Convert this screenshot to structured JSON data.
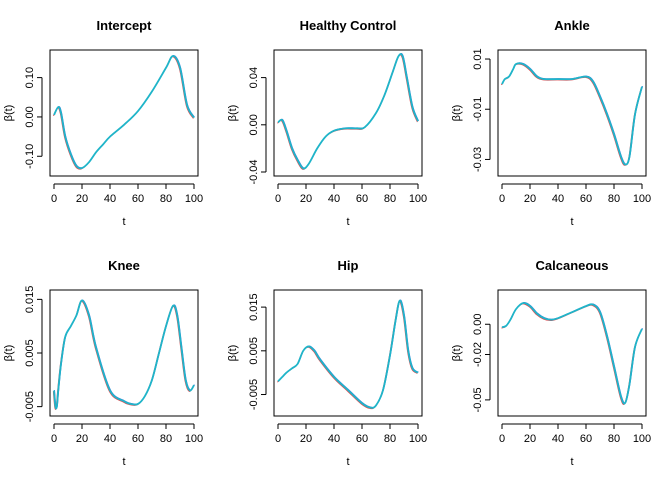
{
  "colors": {
    "axis": "#000000",
    "line_main": "#1fb5c9",
    "line_alt": "#e8474a"
  },
  "chart_data": [
    {
      "type": "line",
      "title": "Intercept",
      "xlabel": "t",
      "ylabel": "β(t)",
      "xlim": [
        0,
        100
      ],
      "ylim": [
        -0.14,
        0.16
      ],
      "xticks": [
        0,
        20,
        40,
        60,
        80,
        100
      ],
      "yticks": [
        -0.1,
        0.0,
        0.1
      ],
      "ytick_labels": [
        "-0.10",
        "0.00",
        "0.10"
      ],
      "x": [
        0,
        3,
        5,
        8,
        12,
        16,
        20,
        25,
        30,
        35,
        40,
        50,
        60,
        70,
        80,
        85,
        90,
        95,
        100
      ],
      "series": [
        {
          "values": [
            0.005,
            0.025,
            0.01,
            -0.05,
            -0.095,
            -0.125,
            -0.13,
            -0.115,
            -0.09,
            -0.07,
            -0.05,
            -0.02,
            0.015,
            0.065,
            0.125,
            0.155,
            0.125,
            0.03,
            -0.002
          ]
        }
      ]
    },
    {
      "type": "line",
      "title": "Healthy Control",
      "xlabel": "t",
      "ylabel": "β(t)",
      "xlim": [
        0,
        100
      ],
      "ylim": [
        -0.04,
        0.06
      ],
      "xticks": [
        0,
        20,
        40,
        60,
        80,
        100
      ],
      "yticks": [
        -0.04,
        0.0,
        0.04
      ],
      "ytick_labels": [
        "-0.04",
        "0.00",
        "0.04"
      ],
      "x": [
        0,
        3,
        6,
        10,
        14,
        18,
        22,
        28,
        34,
        40,
        48,
        56,
        62,
        70,
        76,
        82,
        86,
        89,
        92,
        96,
        100
      ],
      "series": [
        {
          "values": [
            0.002,
            0.004,
            -0.005,
            -0.02,
            -0.03,
            -0.037,
            -0.033,
            -0.02,
            -0.01,
            -0.005,
            -0.003,
            -0.003,
            -0.002,
            0.01,
            0.025,
            0.045,
            0.058,
            0.058,
            0.04,
            0.015,
            0.003
          ]
        }
      ]
    },
    {
      "type": "line",
      "title": "Ankle",
      "xlabel": "t",
      "ylabel": "β(t)",
      "xlim": [
        0,
        100
      ],
      "ylim": [
        -0.035,
        0.012
      ],
      "xticks": [
        0,
        20,
        40,
        60,
        80,
        100
      ],
      "yticks": [
        -0.03,
        -0.01,
        0.01
      ],
      "ytick_labels": [
        "-0.03",
        "-0.01",
        "0.01"
      ],
      "x": [
        0,
        2,
        5,
        8,
        10,
        15,
        20,
        25,
        30,
        40,
        50,
        60,
        65,
        70,
        75,
        80,
        85,
        88,
        91,
        95,
        100
      ],
      "series": [
        {
          "values": [
            0.0,
            0.002,
            0.003,
            0.006,
            0.008,
            0.008,
            0.006,
            0.003,
            0.002,
            0.002,
            0.002,
            0.003,
            0.001,
            -0.005,
            -0.012,
            -0.02,
            -0.029,
            -0.032,
            -0.029,
            -0.012,
            -0.001
          ]
        }
      ]
    },
    {
      "type": "line",
      "title": "Knee",
      "xlabel": "t",
      "ylabel": "β(t)",
      "xlim": [
        0,
        100
      ],
      "ylim": [
        -0.006,
        0.016
      ],
      "xticks": [
        0,
        20,
        40,
        60,
        80,
        100
      ],
      "yticks": [
        -0.005,
        0.005,
        0.015
      ],
      "ytick_labels": [
        "-0.005",
        "0.005",
        "0.015"
      ],
      "x": [
        0,
        1,
        2,
        3,
        5,
        8,
        12,
        16,
        20,
        25,
        30,
        40,
        50,
        55,
        60,
        65,
        70,
        75,
        80,
        85,
        88,
        91,
        94,
        97,
        100
      ],
      "series": [
        {
          "values": [
            -0.002,
            -0.005,
            -0.005,
            -0.002,
            0.003,
            0.008,
            0.01,
            0.012,
            0.0148,
            0.012,
            0.006,
            -0.002,
            -0.004,
            -0.0045,
            -0.0045,
            -0.003,
            0.0,
            0.005,
            0.01,
            0.0138,
            0.012,
            0.006,
            0.0,
            -0.002,
            -0.001
          ]
        }
      ]
    },
    {
      "type": "line",
      "title": "Hip",
      "xlabel": "t",
      "ylabel": "β(t)",
      "xlim": [
        0,
        100
      ],
      "ylim": [
        -0.009,
        0.018
      ],
      "xticks": [
        0,
        20,
        40,
        60,
        80,
        100
      ],
      "yticks": [
        -0.005,
        0.005,
        0.015
      ],
      "ytick_labels": [
        "-0.005",
        "0.005",
        "0.015"
      ],
      "x": [
        0,
        3,
        6,
        10,
        14,
        18,
        22,
        26,
        30,
        40,
        50,
        60,
        66,
        70,
        75,
        80,
        84,
        87,
        90,
        93,
        96,
        100
      ],
      "series": [
        {
          "values": [
            -0.002,
            -0.001,
            0.0,
            0.001,
            0.002,
            0.005,
            0.006,
            0.005,
            0.003,
            -0.001,
            -0.004,
            -0.007,
            -0.008,
            -0.0075,
            -0.004,
            0.004,
            0.012,
            0.0165,
            0.013,
            0.005,
            0.001,
            0.0
          ]
        }
      ]
    },
    {
      "type": "line",
      "title": "Calcaneous",
      "xlabel": "t",
      "ylabel": "β(t)",
      "xlim": [
        0,
        100
      ],
      "ylim": [
        -0.058,
        0.02
      ],
      "xticks": [
        0,
        20,
        40,
        60,
        80,
        100
      ],
      "yticks": [
        -0.05,
        -0.02,
        0.0
      ],
      "ytick_labels": [
        "-0.05",
        "-0.02",
        "0.00"
      ],
      "x": [
        0,
        3,
        6,
        10,
        15,
        20,
        25,
        30,
        35,
        40,
        50,
        60,
        65,
        70,
        75,
        80,
        85,
        88,
        91,
        95,
        100
      ],
      "series": [
        {
          "values": [
            -0.002,
            -0.001,
            0.003,
            0.01,
            0.014,
            0.012,
            0.007,
            0.004,
            0.003,
            0.004,
            0.008,
            0.012,
            0.013,
            0.008,
            -0.008,
            -0.028,
            -0.048,
            -0.052,
            -0.04,
            -0.015,
            -0.003
          ]
        }
      ]
    }
  ]
}
